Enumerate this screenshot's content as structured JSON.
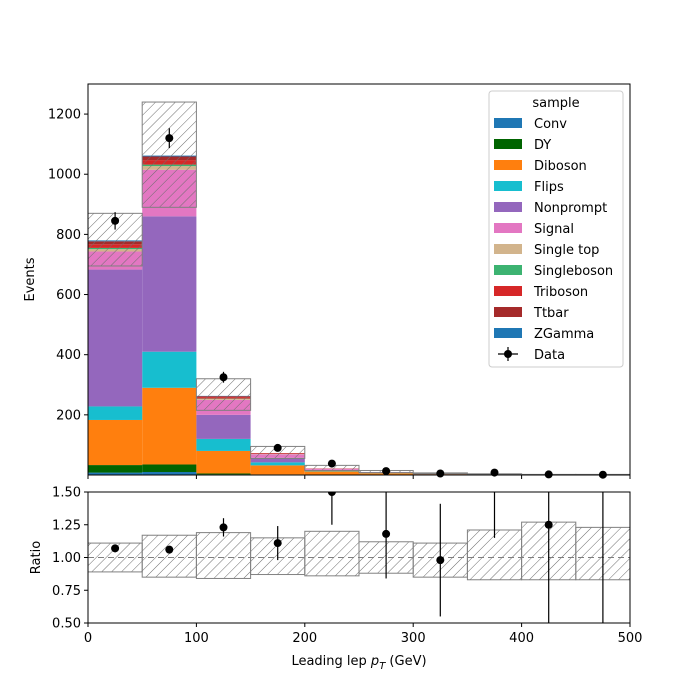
{
  "chart_data": [
    {
      "type": "stacked-histogram",
      "bin_edges": [
        0,
        50,
        100,
        150,
        200,
        250,
        300,
        350,
        400,
        450,
        500
      ],
      "ylabel": "Events",
      "ylim": [
        0,
        1300
      ],
      "yticks": [
        200,
        400,
        600,
        800,
        1000,
        1200
      ],
      "legend": {
        "title": "sample",
        "placement": "upper-right"
      },
      "series": [
        {
          "name": "Conv",
          "color": "#1f77b4",
          "values": [
            8,
            10,
            2,
            1,
            0,
            0,
            0,
            0,
            0,
            0
          ]
        },
        {
          "name": "DY",
          "color": "#006400",
          "values": [
            25,
            25,
            3,
            1,
            0,
            0,
            0,
            0,
            0,
            0
          ]
        },
        {
          "name": "Diboson",
          "color": "#ff7f0e",
          "values": [
            150,
            255,
            75,
            30,
            12,
            6,
            3,
            2,
            1,
            1
          ]
        },
        {
          "name": "Flips",
          "color": "#17becf",
          "values": [
            45,
            120,
            40,
            10,
            2,
            1,
            0,
            0,
            0,
            0
          ]
        },
        {
          "name": "Nonprompt",
          "color": "#9467bd",
          "values": [
            455,
            450,
            80,
            15,
            3,
            1,
            0,
            0,
            0,
            0
          ]
        },
        {
          "name": "Signal",
          "color": "#e377c2",
          "values": [
            60,
            155,
            50,
            12,
            4,
            2,
            1,
            1,
            0,
            0
          ]
        },
        {
          "name": "Single top",
          "color": "#d2b48c",
          "values": [
            8,
            12,
            3,
            1,
            0,
            0,
            0,
            0,
            0,
            0
          ]
        },
        {
          "name": "Singleboson",
          "color": "#3cb371",
          "values": [
            4,
            5,
            1,
            0,
            0,
            0,
            0,
            0,
            0,
            0
          ]
        },
        {
          "name": "Triboson",
          "color": "#d62728",
          "values": [
            12,
            15,
            5,
            2,
            1,
            0,
            0,
            0,
            0,
            0
          ]
        },
        {
          "name": "Ttbar",
          "color": "#a52a2a",
          "values": [
            10,
            12,
            3,
            1,
            0,
            0,
            0,
            0,
            0,
            0
          ]
        },
        {
          "name": "ZGamma",
          "color": "#1f77b4",
          "values": [
            3,
            3,
            1,
            0,
            0,
            0,
            0,
            0,
            0,
            0
          ]
        }
      ],
      "uncertainty_band": {
        "down": [
          695,
          890,
          215,
          55,
          15,
          8,
          4,
          2,
          1,
          1
        ],
        "up": [
          870,
          1240,
          320,
          95,
          32,
          15,
          7,
          4,
          2,
          2
        ]
      },
      "data": {
        "name": "Data",
        "x": [
          25,
          75,
          125,
          175,
          225,
          275,
          325,
          375,
          425,
          475
        ],
        "y": [
          845,
          1120,
          325,
          90,
          38,
          13,
          5,
          8,
          2,
          1
        ],
        "yerr": [
          29,
          33,
          18,
          9.5,
          6.2,
          3.6,
          2.2,
          2.8,
          1.4,
          1
        ]
      }
    },
    {
      "type": "ratio",
      "xlabel": "Leading lep p_T (GeV)",
      "ylabel": "Ratio",
      "xlim": [
        0,
        500
      ],
      "ylim": [
        0.5,
        1.5
      ],
      "xticks": [
        0,
        100,
        200,
        300,
        400,
        500
      ],
      "yticks": [
        "0.50",
        "0.75",
        "1.00",
        "1.25",
        "1.50"
      ],
      "reference_line": 1.0,
      "band": {
        "down": [
          0.89,
          0.85,
          0.84,
          0.87,
          0.86,
          0.88,
          0.85,
          0.83,
          0.83,
          0.83
        ],
        "up": [
          1.11,
          1.17,
          1.19,
          1.15,
          1.2,
          1.12,
          1.11,
          1.21,
          1.27,
          1.23
        ]
      },
      "points": {
        "x": [
          25,
          75,
          125,
          175,
          225,
          275,
          325,
          375,
          425,
          475
        ],
        "y": [
          1.07,
          1.06,
          1.23,
          1.11,
          1.5,
          1.18,
          0.98,
          1.65,
          1.25,
          1.6
        ],
        "yerr_low": [
          0.03,
          0.02,
          0.07,
          0.13,
          0.25,
          0.34,
          0.43,
          0.5,
          0.75,
          1.2
        ],
        "yerr_high": [
          0.03,
          0.02,
          0.07,
          0.13,
          0.25,
          0.34,
          0.43,
          0.5,
          0.75,
          1.2
        ]
      }
    }
  ]
}
